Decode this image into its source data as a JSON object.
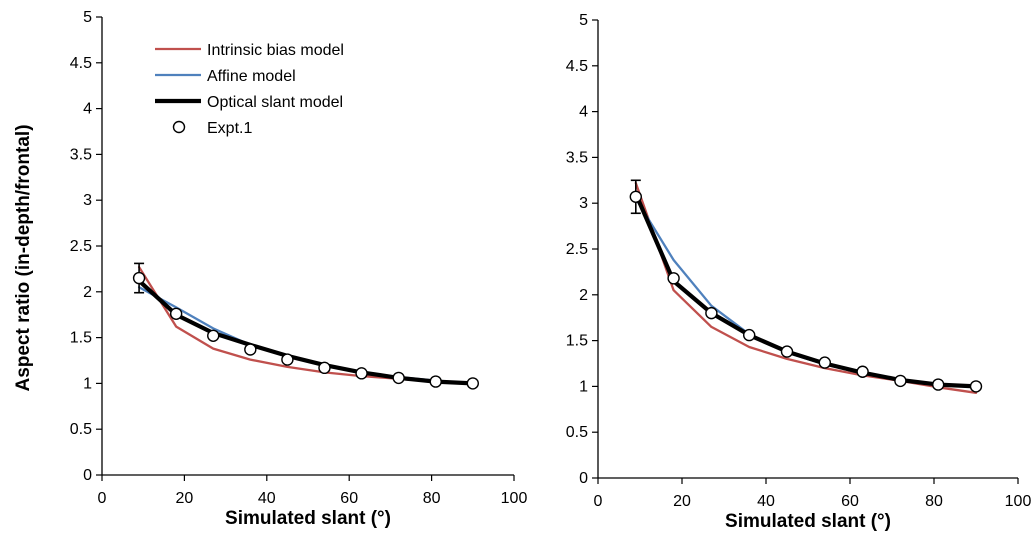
{
  "chart_data": [
    {
      "type": "line",
      "title": "",
      "xlabel": "Simulated slant (°)",
      "ylabel": "Aspect ratio (in-depth/frontal)",
      "xlim": [
        0,
        100
      ],
      "ylim": [
        0,
        5
      ],
      "xticks": [
        "0",
        "20",
        "40",
        "60",
        "80",
        "100"
      ],
      "yticks": [
        "0",
        "0.5",
        "1",
        "1.5",
        "2",
        "2.5",
        "3",
        "3.5",
        "4",
        "4.5",
        "5"
      ],
      "grid": false,
      "legend_position": "top-left",
      "x": [
        9,
        18,
        27,
        36,
        45,
        54,
        63,
        72,
        81,
        90
      ],
      "series": [
        {
          "name": "Intrinsic bias model",
          "kind": "line",
          "color": "#c0504d",
          "values": [
            2.27,
            1.62,
            1.38,
            1.26,
            1.18,
            1.12,
            1.08,
            1.05,
            1.02,
            0.99
          ]
        },
        {
          "name": "Affine model",
          "kind": "line",
          "color": "#4f81bd",
          "values": [
            2.05,
            1.83,
            1.6,
            1.42,
            1.3,
            1.2,
            1.12,
            1.07,
            1.03,
            1.0
          ]
        },
        {
          "name": "Optical slant model",
          "kind": "line",
          "color": "#000000",
          "values": [
            2.12,
            1.75,
            1.55,
            1.42,
            1.3,
            1.2,
            1.12,
            1.06,
            1.02,
            1.0
          ]
        },
        {
          "name": "Expt.1",
          "kind": "points",
          "color": "#000000",
          "values": [
            2.15,
            1.76,
            1.52,
            1.37,
            1.26,
            1.17,
            1.11,
            1.06,
            1.02,
            1.0
          ],
          "error": [
            0.16,
            0,
            0,
            0,
            0,
            0,
            0,
            0,
            0,
            0
          ]
        }
      ]
    },
    {
      "type": "line",
      "title": "",
      "xlabel": "Simulated slant (°)",
      "ylabel": "",
      "xlim": [
        0,
        100
      ],
      "ylim": [
        0,
        5
      ],
      "xticks": [
        "0",
        "20",
        "40",
        "60",
        "80",
        "100"
      ],
      "yticks": [
        "0",
        "0.5",
        "1",
        "1.5",
        "2",
        "2.5",
        "3",
        "3.5",
        "4",
        "4.5",
        "5"
      ],
      "grid": false,
      "legend_position": "",
      "x": [
        9,
        18,
        27,
        36,
        45,
        54,
        63,
        72,
        81,
        90
      ],
      "series": [
        {
          "name": "Intrinsic bias model",
          "kind": "line",
          "color": "#c0504d",
          "values": [
            3.22,
            2.05,
            1.65,
            1.43,
            1.3,
            1.2,
            1.12,
            1.06,
            0.99,
            0.93
          ]
        },
        {
          "name": "Affine model",
          "kind": "line",
          "color": "#4f81bd",
          "values": [
            3.05,
            2.38,
            1.88,
            1.57,
            1.37,
            1.24,
            1.15,
            1.07,
            1.02,
            0.99
          ]
        },
        {
          "name": "Optical slant model",
          "kind": "line",
          "color": "#000000",
          "values": [
            3.1,
            2.15,
            1.8,
            1.56,
            1.38,
            1.25,
            1.15,
            1.07,
            1.02,
            1.0
          ]
        },
        {
          "name": "Expt.1",
          "kind": "points",
          "color": "#000000",
          "values": [
            3.07,
            2.18,
            1.8,
            1.56,
            1.38,
            1.26,
            1.16,
            1.06,
            1.02,
            1.0
          ],
          "error": [
            0.18,
            0,
            0,
            0,
            0,
            0,
            0,
            0,
            0,
            0
          ]
        }
      ]
    }
  ]
}
